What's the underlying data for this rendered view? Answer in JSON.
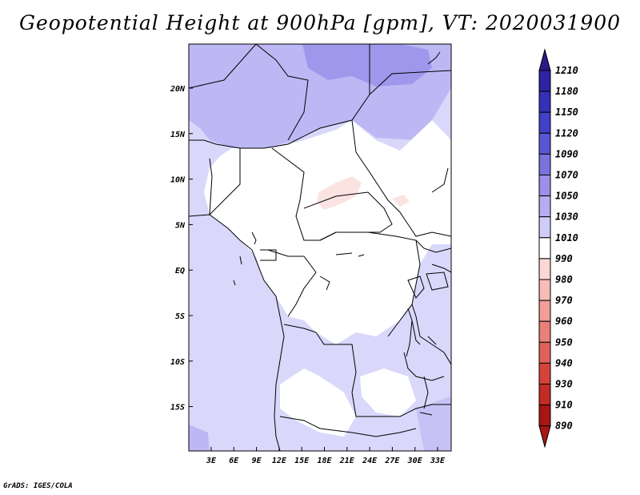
{
  "title": "Geopotential Height at 900hPa [gpm], VT: 2020031900",
  "footer": "GrADS: IGES/COLA",
  "chart_data": {
    "type": "map",
    "variable": "Geopotential Height",
    "level": "900hPa",
    "units": "gpm",
    "valid_time": "2020031900",
    "lon_ticks": [
      "3E",
      "6E",
      "9E",
      "12E",
      "15E",
      "18E",
      "21E",
      "24E",
      "27E",
      "30E",
      "33E"
    ],
    "lat_ticks": [
      "20N",
      "15N",
      "10N",
      "5N",
      "EQ",
      "5S",
      "10S",
      "15S"
    ],
    "colorbar": {
      "levels": [
        1210,
        1180,
        1150,
        1120,
        1090,
        1070,
        1050,
        1030,
        1010,
        990,
        980,
        970,
        960,
        950,
        940,
        930,
        910,
        890
      ],
      "colors": [
        "#2a1a8c",
        "#2e23a4",
        "#3530b8",
        "#4040c8",
        "#5a55d2",
        "#7b72de",
        "#9a90e8",
        "#b4aef0",
        "#cfcdf8",
        "#ffffff",
        "#fbd8d6",
        "#f7bcb8",
        "#f09e99",
        "#e88079",
        "#df625a",
        "#d5443b",
        "#c22c24",
        "#a81512"
      ]
    }
  }
}
